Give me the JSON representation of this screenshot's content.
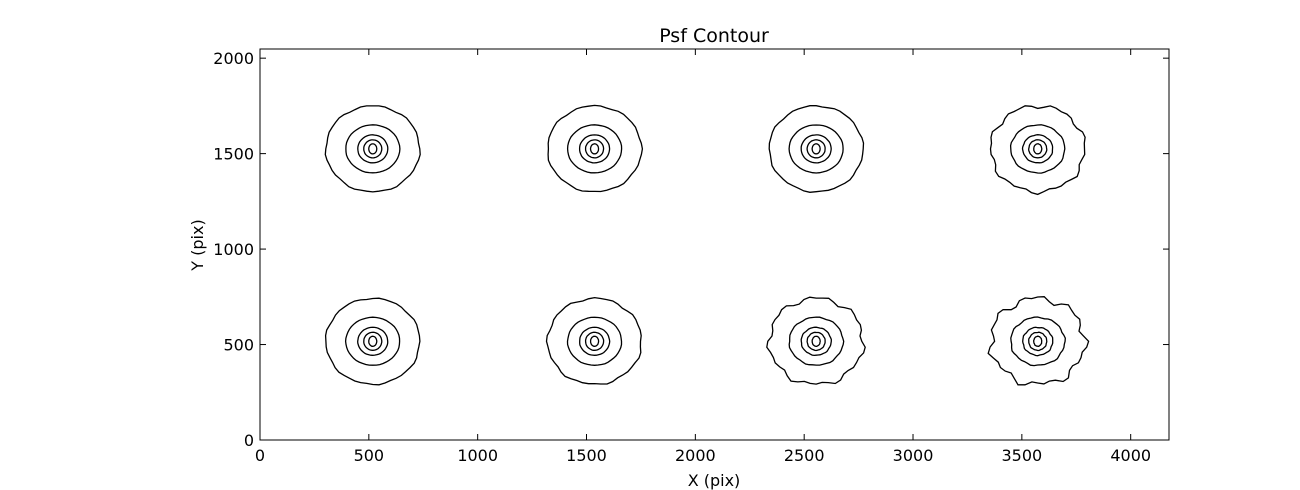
{
  "chart_data": {
    "type": "contour",
    "title": "Psf Contour",
    "x_label": "X (pix)",
    "y_label": "Y (pix)",
    "x": [
      518,
      1537,
      2555,
      3573,
      518,
      1537,
      2555,
      3573
    ],
    "y": [
      1525,
      1525,
      1525,
      1525,
      517,
      517,
      517,
      517
    ],
    "color": "#000000",
    "xlim": [
      0,
      4176
    ],
    "xticks": [
      0,
      500,
      1000,
      1500,
      2000,
      2500,
      3000,
      3500,
      4000
    ],
    "ylim": [
      0,
      2048
    ],
    "yticks": [
      0,
      500,
      1000,
      1500,
      2000
    ]
  }
}
